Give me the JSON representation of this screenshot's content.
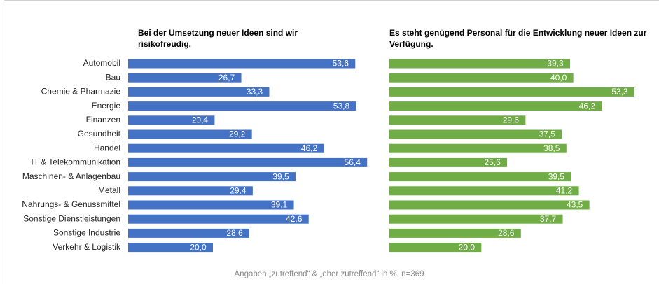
{
  "chart_data": [
    {
      "type": "bar",
      "orientation": "horizontal",
      "title": "Bei der Umsetzung neuer Ideen sind wir risikofreudig.",
      "categories": [
        "Automobil",
        "Bau",
        "Chemie & Pharmazie",
        "Energie",
        "Finanzen",
        "Gesundheit",
        "Handel",
        "IT & Telekommunikation",
        "Maschinen- & Anlagenbau",
        "Metall",
        "Nahrungs- & Genussmittel",
        "Sonstige Dienstleistungen",
        "Sonstige Industrie",
        "Verkehr & Logistik"
      ],
      "values": [
        53.6,
        26.7,
        33.3,
        53.8,
        20.4,
        29.2,
        46.2,
        56.4,
        39.5,
        29.4,
        39.1,
        42.6,
        28.6,
        20.0
      ],
      "value_labels": [
        "53,6",
        "26,7",
        "33,3",
        "53,8",
        "20,4",
        "29,2",
        "46,2",
        "56,4",
        "39,5",
        "29,4",
        "39,1",
        "42,6",
        "28,6",
        "20,0"
      ],
      "color": "#4472c4",
      "xlim": [
        0,
        60
      ]
    },
    {
      "type": "bar",
      "orientation": "horizontal",
      "title": "Es steht genügend Personal für die Entwicklung neuer Ideen zur Verfügung.",
      "values": [
        39.3,
        40.0,
        53.3,
        46.2,
        29.6,
        37.5,
        38.5,
        25.6,
        39.5,
        41.2,
        43.5,
        37.7,
        28.6,
        20.0
      ],
      "value_labels": [
        "39,3",
        "40,0",
        "53,3",
        "46,2",
        "29,6",
        "37,5",
        "38,5",
        "25,6",
        "39,5",
        "41,2",
        "43,5",
        "37,7",
        "28,6",
        "20,0"
      ],
      "color": "#70ad47",
      "xlim": [
        0,
        60
      ]
    }
  ],
  "footnote": "Angaben „zutreffend“ & „eher zutreffend“ in %, n=369"
}
